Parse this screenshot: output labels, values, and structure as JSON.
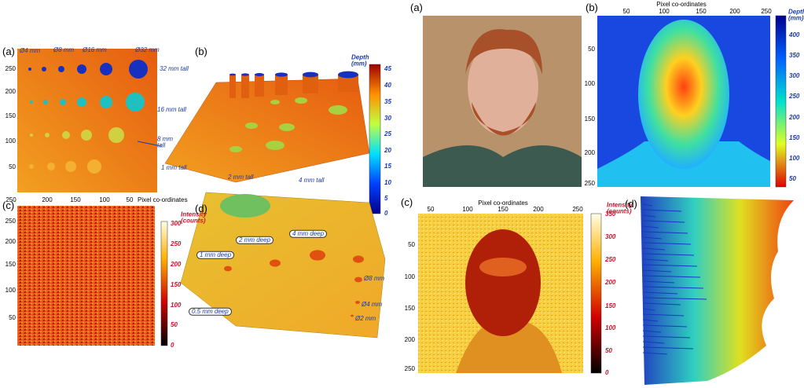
{
  "left_figure": {
    "panel_a": {
      "label": "(a)",
      "y_ticks": [
        250,
        200,
        150,
        100,
        50
      ],
      "x_ticks": [
        250,
        200,
        150,
        100,
        50
      ],
      "x_axis_label": "Pixel co-ordinates",
      "annotations": [
        "Ø4 mm",
        "Ø8 mm",
        "Ø16 mm",
        "Ø32 mm",
        "32 mm tall",
        "16 mm tall",
        "8 mm tall"
      ]
    },
    "panel_b": {
      "label": "(b)",
      "colorbar_title": "Depth (mm)",
      "colorbar_ticks": [
        45,
        40,
        35,
        30,
        25,
        20,
        15,
        10,
        5,
        0
      ],
      "annotations": [
        "1 mm tall",
        "2 mm tall",
        "4 mm tall"
      ]
    },
    "panel_c": {
      "label": "(c)",
      "y_ticks": [
        250,
        200,
        150,
        100,
        50
      ],
      "colorbar_title": "Intensity (counts)",
      "colorbar_ticks": [
        300,
        250,
        200,
        150,
        100,
        50,
        0
      ]
    },
    "panel_d": {
      "label": "(d)",
      "annotations": [
        "2 mm deep",
        "4 mm deep",
        "1 mm deep",
        "0.5 mm deep",
        "Ø8 mm",
        "Ø4 mm",
        "Ø2 mm"
      ]
    }
  },
  "right_figure": {
    "panel_a": {
      "label": "(a)"
    },
    "panel_b": {
      "label": "(b)",
      "x_axis_label": "Pixel co-ordinates",
      "x_ticks": [
        50,
        100,
        150,
        200,
        250
      ],
      "y_ticks": [
        50,
        100,
        150,
        200,
        250
      ],
      "colorbar_title": "Depth (mm)",
      "colorbar_ticks": [
        400,
        350,
        300,
        250,
        200,
        150,
        100,
        50
      ]
    },
    "panel_c": {
      "label": "(c)",
      "x_axis_label": "Pixel co-ordinates",
      "x_ticks": [
        50,
        100,
        150,
        200,
        250
      ],
      "y_ticks": [
        50,
        100,
        150,
        200,
        250
      ],
      "colorbar_title": "Intensity (counts)",
      "colorbar_ticks": [
        350,
        300,
        250,
        200,
        150,
        100,
        50,
        0
      ]
    },
    "panel_d": {
      "label": "(d)"
    }
  }
}
